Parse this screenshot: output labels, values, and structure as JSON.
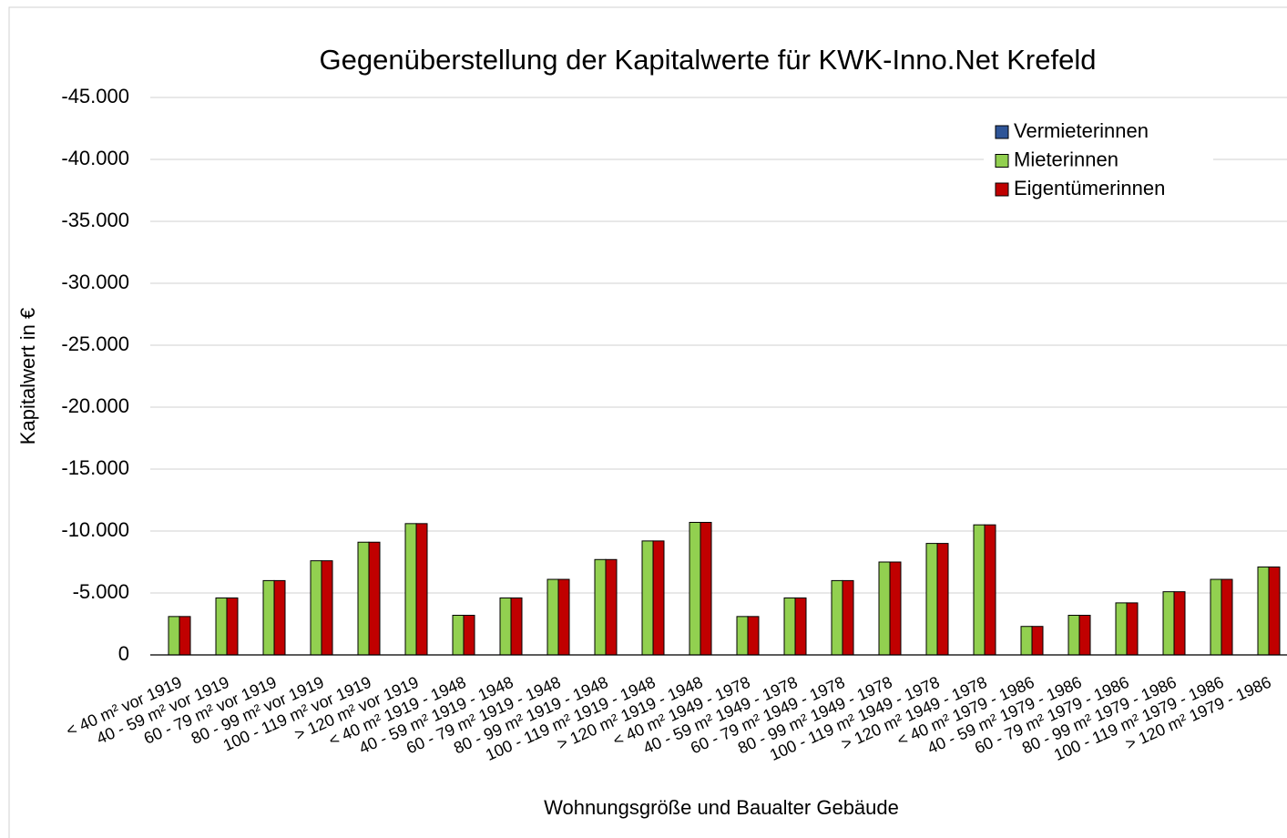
{
  "chart_data": {
    "type": "bar",
    "title": "Gegenüberstellung der Kapitalwerte für KWK-Inno.Net Krefeld",
    "y_label": "Kapitalwert in €",
    "x_label": "Wohnungsgröße und Baualter Gebäude",
    "categories": [
      "< 40 m² vor 1919",
      "40 - 59 m² vor 1919",
      "60 - 79 m² vor 1919",
      "80 - 99 m² vor 1919",
      "100 - 119 m² vor 1919",
      "> 120 m² vor 1919",
      "< 40 m² 1919 - 1948",
      "40 - 59 m² 1919 - 1948",
      "60 - 79 m² 1919 - 1948",
      "80 - 99 m² 1919 - 1948",
      "100 - 119 m² 1919 - 1948",
      "> 120 m² 1919 - 1948",
      "< 40 m² 1949 - 1978",
      "40 - 59 m² 1949 - 1978",
      "60 - 79 m² 1949 - 1978",
      "80 - 99 m² 1949 - 1978",
      "100 - 119 m² 1949 - 1978",
      "> 120 m² 1949 - 1978",
      "< 40 m² 1979 - 1986",
      "40 - 59 m² 1979 - 1986",
      "60 - 79 m² 1979 - 1986",
      "80 - 99 m² 1979 - 1986",
      "100 - 119 m² 1979 - 1986",
      "> 120 m² 1979 - 1986"
    ],
    "series": [
      {
        "name": "Vermieterinnen",
        "color": "#2f5597",
        "values": [
          0,
          0,
          0,
          0,
          0,
          0,
          0,
          0,
          0,
          0,
          0,
          0,
          0,
          0,
          0,
          0,
          0,
          0,
          0,
          0,
          0,
          0,
          0,
          0
        ]
      },
      {
        "name": "Mieterinnen",
        "color": "#92d050",
        "values": [
          -3100,
          -4600,
          -6000,
          -7600,
          -9100,
          -10600,
          -3200,
          -4600,
          -6100,
          -7700,
          -9200,
          -10700,
          -3100,
          -4600,
          -6000,
          -7500,
          -9000,
          -10500,
          -2300,
          -3200,
          -4200,
          -5100,
          -6100,
          -7100
        ]
      },
      {
        "name": "Eigentümerinnen",
        "color": "#c00000",
        "values": [
          -3100,
          -4600,
          -6000,
          -7600,
          -9100,
          -10600,
          -3200,
          -4600,
          -6100,
          -7700,
          -9200,
          -10700,
          -3100,
          -4600,
          -6000,
          -7500,
          -9000,
          -10500,
          -2300,
          -3200,
          -4200,
          -5100,
          -6100,
          -7100
        ]
      }
    ],
    "ylim": [
      0,
      -45000
    ],
    "yticks": [
      0,
      {
        "value": -5000,
        "label": "-5.000"
      },
      {
        "value": -10000,
        "label": "-10.000"
      },
      {
        "value": -15000,
        "label": "-15.000"
      },
      {
        "value": -20000,
        "label": "-20.000"
      },
      {
        "value": -25000,
        "label": "-25.000"
      },
      {
        "value": -30000,
        "label": "-30.000"
      },
      {
        "value": -35000,
        "label": "-35.000"
      },
      {
        "value": -40000,
        "label": "-40.000"
      },
      {
        "value": -45000,
        "label": "-45.000"
      }
    ],
    "grid": true,
    "legend": "upper right"
  }
}
